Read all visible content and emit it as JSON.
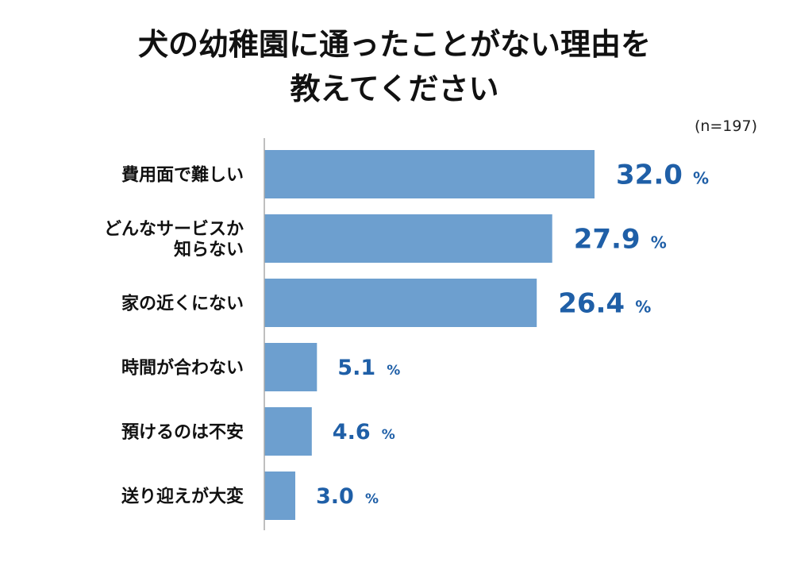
{
  "chart_data": {
    "type": "bar",
    "orientation": "horizontal",
    "title": [
      "犬の幼稚園に通ったことがない理由を",
      "教えてください"
    ],
    "note": "(n=197)",
    "unit": "%",
    "categories": [
      [
        "費用面で難しい"
      ],
      [
        "どんなサービスか",
        "知らない"
      ],
      [
        "家の近くにない"
      ],
      [
        "時間が合わない"
      ],
      [
        "預けるのは不安"
      ],
      [
        "送り迎えが大変"
      ]
    ],
    "values": [
      32.0,
      27.9,
      26.4,
      5.1,
      4.6,
      3.0
    ],
    "value_labels": [
      "32.0",
      "27.9",
      "26.4",
      "5.1",
      "4.6",
      "3.0"
    ],
    "grid": false,
    "legend": "none"
  },
  "colors": {
    "bar": "#6d9fcf",
    "value_text": "#1f5fa7",
    "axis": "#aaaaaa"
  }
}
